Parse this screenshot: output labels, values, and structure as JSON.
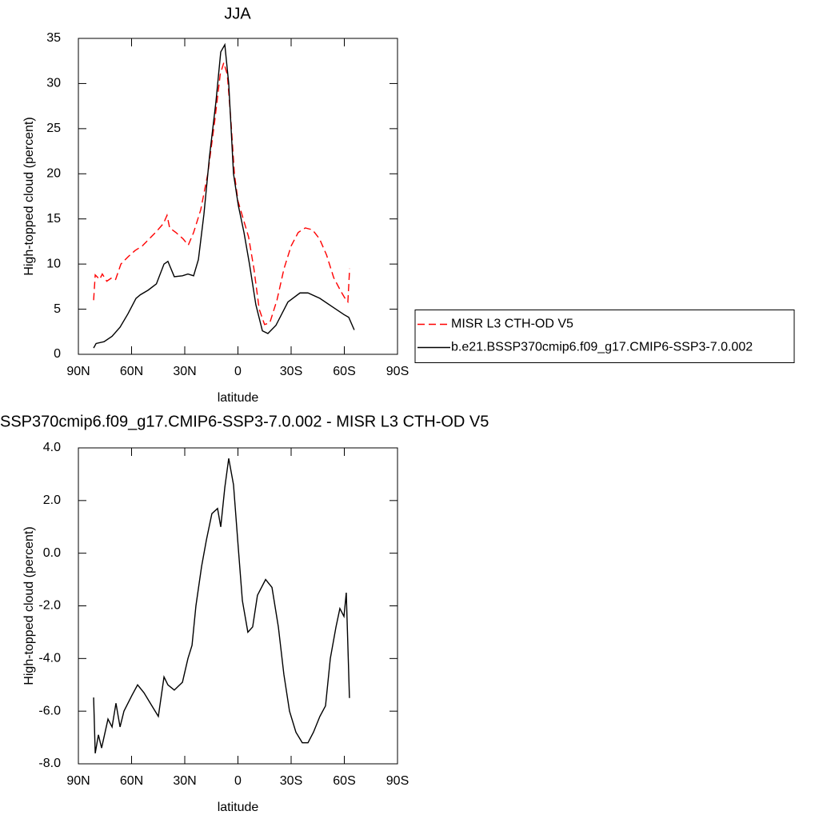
{
  "chart_data": [
    {
      "type": "line",
      "title": "JJA",
      "xlabel": "latitude",
      "ylabel": "High-topped cloud (percent)",
      "xlim": [
        90,
        -90
      ],
      "xticks": [
        {
          "value": 90,
          "label": "90N"
        },
        {
          "value": 60,
          "label": "60N"
        },
        {
          "value": 30,
          "label": "30N"
        },
        0,
        {
          "value": -30,
          "label": "30S"
        },
        {
          "value": -60,
          "label": "60S"
        },
        {
          "value": -90,
          "label": "90S"
        }
      ],
      "ylim": [
        0,
        35
      ],
      "yticks": [
        0,
        5,
        10,
        15,
        20,
        25,
        30,
        35
      ],
      "legend": "right",
      "series": [
        {
          "name": "MISR L3 CTH-OD V5",
          "color": "#ff0000",
          "style": "dashed",
          "x": [
            81.4,
            80.5,
            78,
            76.5,
            74,
            71,
            69,
            66,
            62,
            58,
            54,
            50,
            46,
            42,
            40,
            38.5,
            35,
            31,
            28,
            25,
            21,
            17,
            13,
            10,
            8,
            6,
            4,
            2,
            0,
            -3,
            -6,
            -9,
            -12,
            -15,
            -18,
            -22,
            -26,
            -30,
            -34,
            -38,
            -42,
            -46,
            -50,
            -54,
            -58,
            -61,
            -62,
            -63
          ],
          "values": [
            6.0,
            8.8,
            8.3,
            8.9,
            8.1,
            8.5,
            8.3,
            10.0,
            10.8,
            11.5,
            12.0,
            12.8,
            13.6,
            14.5,
            15.4,
            14.0,
            13.5,
            12.8,
            12.1,
            13.5,
            16.0,
            20,
            26,
            31,
            32.3,
            31,
            26,
            20,
            17,
            15,
            13,
            9.5,
            5,
            3.3,
            3.5,
            6,
            9.5,
            12,
            13.5,
            14.0,
            13.8,
            12.8,
            11.0,
            8.5,
            7.0,
            6.0,
            5.8,
            9.5
          ]
        },
        {
          "name": "b.e21.BSSP370cmip6.f09_g17.CMIP6-SSP3-7.0.002",
          "color": "#000000",
          "style": "solid",
          "x": [
            81.4,
            80,
            75.5,
            71,
            66.5,
            62,
            57.5,
            55,
            50.7,
            46,
            41.7,
            39.5,
            35.9,
            31.3,
            28.2,
            25,
            22.3,
            19.2,
            16,
            12.4,
            9.7,
            7.4,
            5.2,
            2.5,
            -0.2,
            -3.4,
            -6.5,
            -10.1,
            -13.8,
            -16.9,
            -21.4,
            -28.2,
            -35,
            -39.5,
            -46.2,
            -53,
            -59.8,
            -62.5,
            -65.6
          ],
          "values": [
            0.7,
            1.2,
            1.4,
            2.0,
            3.0,
            4.5,
            6.2,
            6.6,
            7.1,
            7.8,
            10.0,
            10.3,
            8.6,
            8.7,
            8.9,
            8.7,
            10.5,
            15.5,
            22,
            28,
            33.5,
            34.3,
            30,
            20,
            16.5,
            13.5,
            10,
            5.5,
            2.6,
            2.3,
            3.2,
            5.8,
            6.8,
            6.8,
            6.2,
            5.3,
            4.4,
            4.1,
            2.7
          ]
        }
      ]
    },
    {
      "type": "line",
      "title": "SSP370cmip6.f09_g17.CMIP6-SSP3-7.0.002 - MISR L3 CTH-OD V5",
      "xlabel": "latitude",
      "ylabel": "High-topped cloud (percent)",
      "xlim": [
        90,
        -90
      ],
      "xticks": [
        {
          "value": 90,
          "label": "90N"
        },
        {
          "value": 60,
          "label": "60N"
        },
        {
          "value": 30,
          "label": "30N"
        },
        0,
        {
          "value": -30,
          "label": "30S"
        },
        {
          "value": -60,
          "label": "60S"
        },
        {
          "value": -90,
          "label": "90S"
        }
      ],
      "ylim": [
        -8,
        4
      ],
      "yticks": [
        {
          "value": -8,
          "label": "-8.0"
        },
        {
          "value": -6,
          "label": "-6.0"
        },
        {
          "value": -4,
          "label": "-4.0"
        },
        {
          "value": -2,
          "label": "-2.0"
        },
        {
          "value": 0,
          "label": "0.0"
        },
        {
          "value": 2,
          "label": "2.0"
        },
        {
          "value": 4,
          "label": "4.0"
        }
      ],
      "series": [
        {
          "color": "#000000",
          "style": "solid",
          "x": [
            81.4,
            80.5,
            78.7,
            76.9,
            73.3,
            71,
            68.8,
            66.5,
            64.3,
            59.8,
            56.6,
            53,
            48.5,
            44.9,
            41.7,
            39.5,
            35.9,
            31.3,
            28.2,
            25.9,
            23.7,
            20.5,
            17.8,
            14.7,
            11.5,
            9.7,
            7.4,
            5.2,
            2.5,
            -0.2,
            -2.5,
            -5.6,
            -8.3,
            -11,
            -15.6,
            -19.2,
            -22.8,
            -25.9,
            -29.1,
            -32.7,
            -36.3,
            -39.5,
            -42.6,
            -46.2,
            -49.4,
            -52.1,
            -55.3,
            -57.5,
            -59.8,
            -61.1,
            -62.9
          ],
          "values": [
            -5.48,
            -7.6,
            -6.9,
            -7.4,
            -6.3,
            -6.6,
            -5.7,
            -6.6,
            -6.0,
            -5.4,
            -5.0,
            -5.3,
            -5.8,
            -6.2,
            -4.7,
            -5.0,
            -5.2,
            -4.9,
            -4.0,
            -3.5,
            -2.0,
            -0.5,
            0.5,
            1.5,
            1.7,
            1.0,
            2.5,
            3.6,
            2.6,
            0.2,
            -1.8,
            -3.0,
            -2.8,
            -1.6,
            -1.0,
            -1.3,
            -2.8,
            -4.6,
            -6.0,
            -6.8,
            -7.2,
            -7.2,
            -6.8,
            -6.2,
            -5.8,
            -4.0,
            -2.8,
            -2.1,
            -2.4,
            -1.5,
            -5.5
          ]
        }
      ]
    }
  ]
}
